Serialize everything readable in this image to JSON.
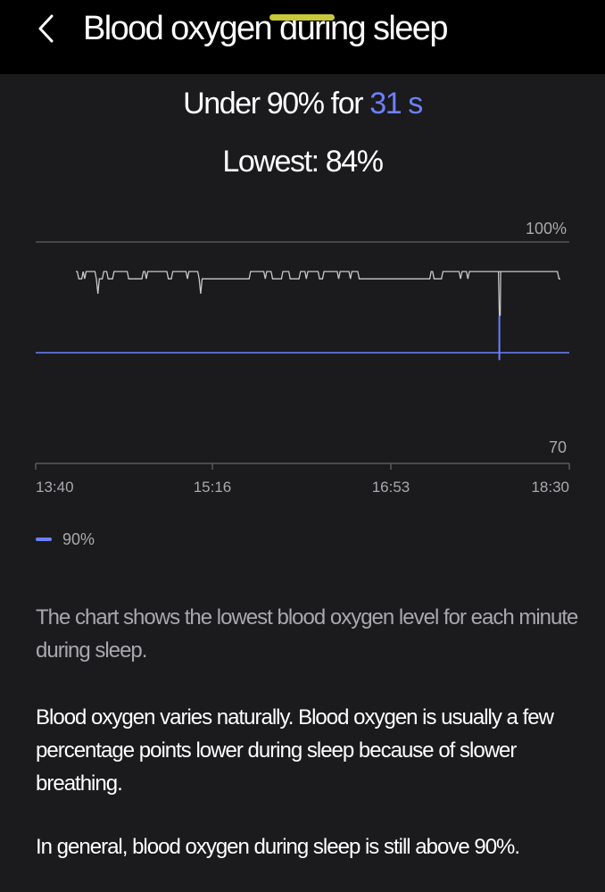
{
  "header": {
    "title": "Blood oxygen during sleep",
    "back_icon": "chevron-left-icon"
  },
  "summary": {
    "under_prefix": "Under 90% for ",
    "under_value": "31 s",
    "lowest": "Lowest: 84%"
  },
  "colors": {
    "background": "#1b1b1d",
    "header": "#000000",
    "accent": "#6c80ff",
    "line": "#c8c8cc",
    "grid": "#555559",
    "scroll_indicator": "#c8c83a"
  },
  "chart_data": {
    "type": "line",
    "ylim": [
      70,
      100
    ],
    "y_tick_labels": [
      "100%",
      "70"
    ],
    "x_tick_labels": [
      "13:40",
      "15:16",
      "16:53",
      "18:30"
    ],
    "x_range": [
      "13:40",
      "18:30"
    ],
    "threshold": {
      "value": 90,
      "label": "90%"
    },
    "series": [
      {
        "values": [
          96,
          96,
          95,
          95,
          95,
          96,
          95,
          96,
          96,
          96,
          96,
          96,
          96,
          96,
          95,
          93,
          95,
          95,
          95,
          96,
          96,
          96,
          95,
          95,
          95,
          95,
          96,
          96,
          96,
          96,
          96,
          96,
          96,
          96,
          96,
          96,
          95,
          95,
          95,
          95,
          95,
          95,
          95,
          95,
          95,
          95,
          96,
          96,
          95,
          96,
          96,
          96,
          96,
          96,
          96,
          96,
          96,
          96,
          96,
          96,
          96,
          96,
          96,
          95,
          95,
          95,
          96,
          96,
          96,
          96,
          96,
          96,
          96,
          96,
          96,
          96,
          95,
          96,
          96,
          96,
          96,
          96,
          96,
          96,
          95,
          93,
          95,
          95,
          95,
          95,
          95,
          95,
          95,
          95,
          95,
          95,
          95,
          95,
          95,
          95,
          95,
          95,
          95,
          95,
          95,
          95,
          95,
          95,
          95,
          95,
          95,
          95,
          95,
          95,
          95,
          95,
          95,
          95,
          95,
          96,
          96,
          96,
          96,
          96,
          96,
          96,
          96,
          96,
          96,
          95,
          96,
          96,
          96,
          96,
          95,
          95,
          95,
          95,
          95,
          95,
          95,
          96,
          96,
          96,
          96,
          96,
          95,
          95,
          95,
          95,
          95,
          95,
          95,
          96,
          96,
          96,
          96,
          95,
          96,
          96,
          96,
          96,
          96,
          96,
          96,
          96,
          95,
          95,
          95,
          96,
          96,
          96,
          96,
          96,
          96,
          96,
          96,
          96,
          96,
          95,
          96,
          96,
          96,
          96,
          96,
          96,
          96,
          95,
          96,
          96,
          96,
          96,
          96,
          95,
          95,
          95,
          95,
          95,
          95,
          95,
          95,
          95,
          95,
          95,
          95,
          95,
          95,
          95,
          95,
          95,
          95,
          95,
          95,
          95,
          95,
          95,
          95,
          95,
          95,
          95,
          95,
          95,
          95,
          95,
          95,
          95,
          95,
          95,
          95,
          95,
          95,
          95,
          95,
          95,
          95,
          95,
          95,
          95,
          95,
          95,
          95,
          95,
          96,
          96,
          95,
          95,
          95,
          95,
          95,
          95,
          96,
          96,
          96,
          96,
          96,
          96,
          96,
          96,
          96,
          96,
          96,
          96,
          95,
          96,
          96,
          96,
          96,
          95,
          96,
          96,
          96,
          96,
          96,
          96,
          96,
          96,
          96,
          96,
          96,
          96,
          96,
          96,
          96,
          96,
          96,
          96,
          96,
          96,
          96,
          96,
          96,
          96,
          96,
          96,
          96,
          96,
          96,
          96,
          96,
          96,
          96,
          96,
          96,
          96,
          96,
          96,
          96,
          96,
          96,
          96,
          96,
          96,
          96,
          96,
          96,
          96,
          96,
          96,
          96,
          96,
          96,
          96,
          96,
          96,
          96,
          96,
          96,
          96,
          96,
          95,
          95
        ]
      }
    ],
    "dip": {
      "time": "17:52",
      "value": 84
    }
  }
}
